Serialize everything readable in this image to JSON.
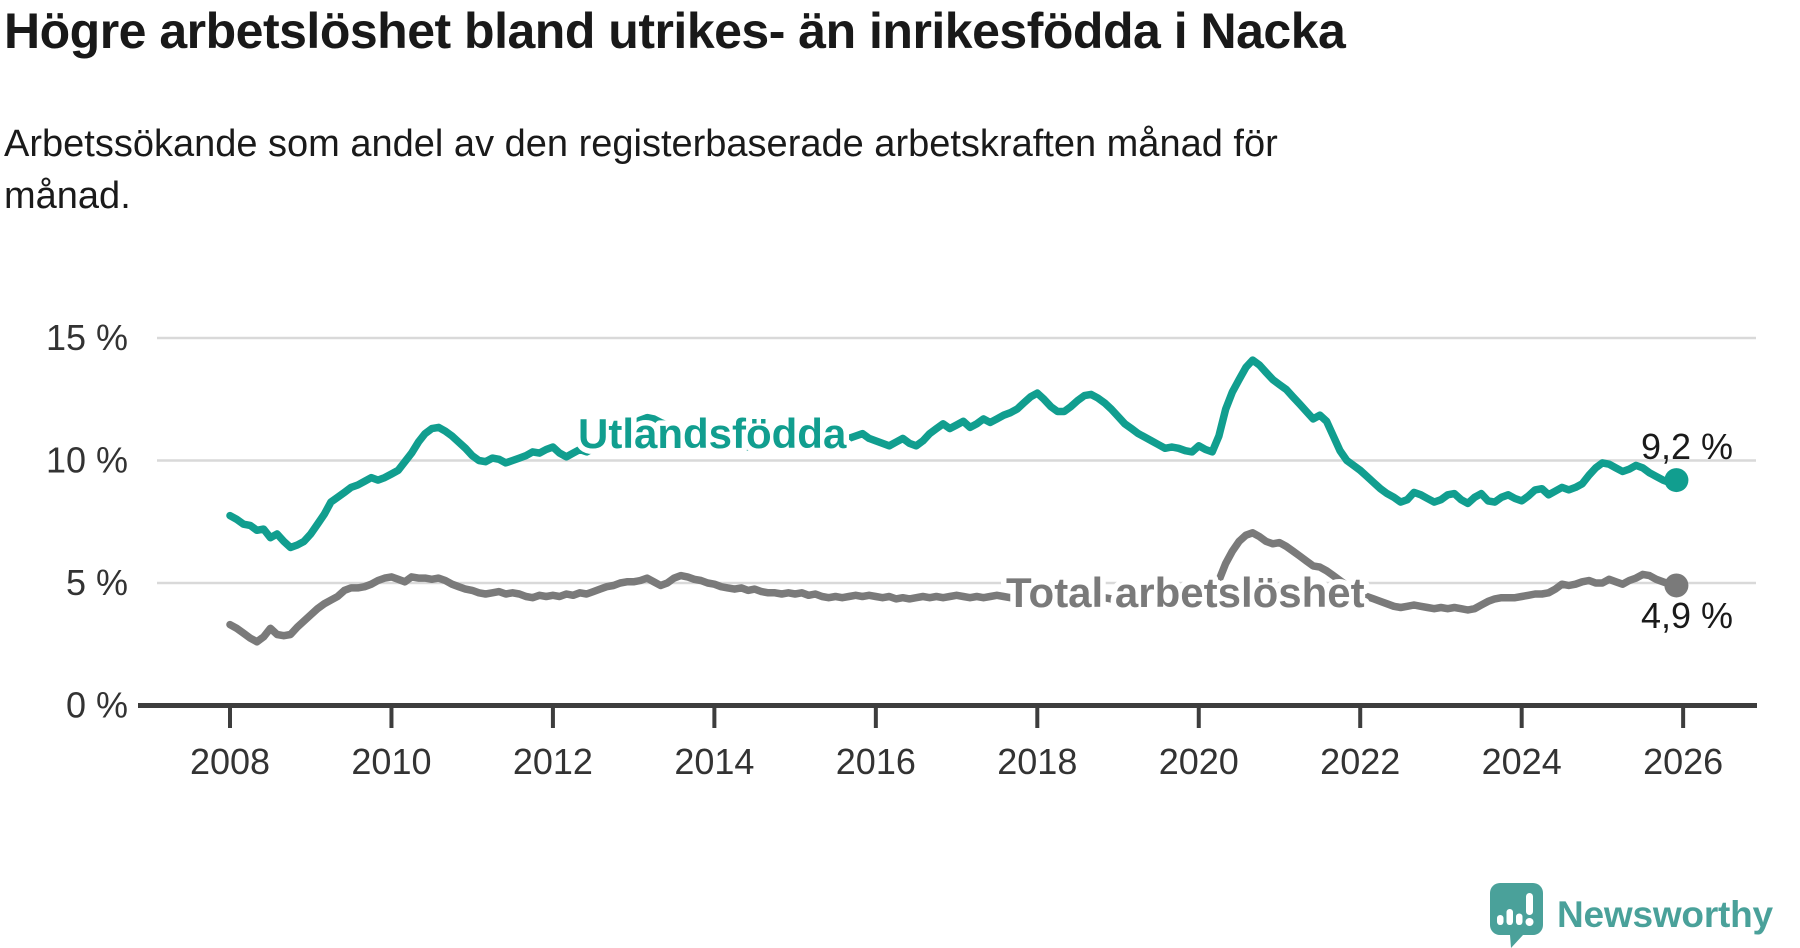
{
  "header": {
    "title": "Högre arbetslöshet bland utrikes- än inrikesfödda i Nacka",
    "subtitle_lines": [
      "Arbetssökande som andel av den registerbaserade arbetskraften månad för",
      "månad."
    ]
  },
  "branding": {
    "name": "Newsworthy",
    "color": "#4aa19a"
  },
  "colors": {
    "teal": "#119e8f",
    "gray": "#7a7a7a",
    "grid": "#d9d9d9",
    "axis": "#3d3d3d",
    "text": "#1a1a1a",
    "tick_text": "#333333"
  },
  "chart_data": {
    "type": "line",
    "title": "Högre arbetslöshet bland utrikes- än inrikesfödda i Nacka",
    "xlabel": "",
    "ylabel": "Arbetssökande som andel av den registerbaserade arbetskraften",
    "x_start": "2008-01",
    "x_end": "2025-12",
    "x_frequency": "monthly",
    "x_tick_years": [
      2008,
      2010,
      2012,
      2014,
      2016,
      2018,
      2020,
      2022,
      2024,
      2026
    ],
    "y_ticks": [
      0,
      5,
      10,
      15
    ],
    "y_tick_suffix": " %",
    "ylim": [
      0,
      15.8
    ],
    "grid": true,
    "legend_position": "inline-on-line",
    "series": [
      {
        "name": "Utlandsfödda",
        "color": "#119e8f",
        "end_value": 9.2,
        "end_label": "9,2 %",
        "label_anchor": {
          "x_year": 2012.3,
          "y_pct": 11.15
        },
        "values": [
          7.75,
          7.6,
          7.4,
          7.35,
          7.15,
          7.2,
          6.85,
          7.0,
          6.7,
          6.45,
          6.55,
          6.7,
          7.0,
          7.4,
          7.8,
          8.3,
          8.5,
          8.7,
          8.9,
          9.0,
          9.15,
          9.3,
          9.2,
          9.3,
          9.45,
          9.6,
          9.95,
          10.3,
          10.75,
          11.1,
          11.3,
          11.35,
          11.2,
          11.0,
          10.75,
          10.5,
          10.2,
          10.0,
          9.95,
          10.1,
          10.05,
          9.9,
          10.0,
          10.1,
          10.2,
          10.35,
          10.3,
          10.45,
          10.55,
          10.3,
          10.15,
          10.3,
          10.45,
          10.35,
          10.5,
          10.65,
          10.8,
          10.95,
          11.1,
          11.3,
          11.5,
          11.65,
          11.75,
          11.7,
          11.55,
          11.45,
          11.3,
          11.2,
          11.1,
          11.0,
          10.9,
          11.0,
          11.05,
          10.9,
          10.8,
          10.7,
          10.65,
          10.55,
          10.65,
          10.55,
          10.6,
          10.7,
          10.65,
          10.75,
          10.7,
          10.8,
          10.75,
          10.7,
          10.8,
          10.75,
          10.7,
          10.8,
          10.9,
          11.0,
          11.1,
          10.9,
          10.8,
          10.7,
          10.6,
          10.75,
          10.9,
          10.7,
          10.6,
          10.8,
          11.1,
          11.3,
          11.5,
          11.3,
          11.45,
          11.6,
          11.35,
          11.5,
          11.7,
          11.55,
          11.7,
          11.85,
          11.95,
          12.1,
          12.35,
          12.6,
          12.75,
          12.5,
          12.2,
          12.0,
          12.0,
          12.2,
          12.45,
          12.65,
          12.7,
          12.55,
          12.35,
          12.1,
          11.8,
          11.5,
          11.3,
          11.1,
          10.95,
          10.8,
          10.65,
          10.5,
          10.55,
          10.5,
          10.4,
          10.35,
          10.6,
          10.45,
          10.35,
          11.0,
          12.1,
          12.8,
          13.3,
          13.8,
          14.1,
          13.9,
          13.6,
          13.3,
          13.1,
          12.9,
          12.6,
          12.3,
          12.0,
          11.7,
          11.85,
          11.6,
          11.0,
          10.4,
          10.0,
          9.8,
          9.6,
          9.35,
          9.1,
          8.85,
          8.65,
          8.5,
          8.3,
          8.4,
          8.7,
          8.6,
          8.45,
          8.3,
          8.4,
          8.6,
          8.65,
          8.4,
          8.25,
          8.5,
          8.65,
          8.35,
          8.3,
          8.5,
          8.6,
          8.45,
          8.35,
          8.55,
          8.8,
          8.85,
          8.6,
          8.75,
          8.9,
          8.8,
          8.9,
          9.05,
          9.4,
          9.7,
          9.9,
          9.85,
          9.7,
          9.55,
          9.65,
          9.8,
          9.7,
          9.5,
          9.35,
          9.2,
          9.1,
          9.2
        ]
      },
      {
        "name": "Total arbetslöshet",
        "color": "#7a7a7a",
        "end_value": 4.9,
        "end_label": "4,9 %",
        "label_anchor": {
          "x_year": 2017.7,
          "y_pct": 4.65
        },
        "values": [
          3.3,
          3.15,
          2.95,
          2.75,
          2.6,
          2.8,
          3.15,
          2.9,
          2.85,
          2.9,
          3.2,
          3.45,
          3.7,
          3.95,
          4.15,
          4.3,
          4.45,
          4.7,
          4.8,
          4.8,
          4.85,
          4.95,
          5.1,
          5.2,
          5.25,
          5.15,
          5.05,
          5.25,
          5.2,
          5.2,
          5.15,
          5.2,
          5.1,
          4.95,
          4.85,
          4.75,
          4.7,
          4.6,
          4.55,
          4.6,
          4.65,
          4.55,
          4.6,
          4.55,
          4.45,
          4.4,
          4.5,
          4.45,
          4.5,
          4.45,
          4.55,
          4.5,
          4.6,
          4.55,
          4.65,
          4.75,
          4.85,
          4.9,
          5.0,
          5.05,
          5.05,
          5.1,
          5.2,
          5.05,
          4.9,
          5.0,
          5.2,
          5.3,
          5.25,
          5.15,
          5.1,
          5.0,
          4.95,
          4.85,
          4.8,
          4.75,
          4.8,
          4.7,
          4.75,
          4.65,
          4.6,
          4.6,
          4.55,
          4.6,
          4.55,
          4.6,
          4.5,
          4.55,
          4.45,
          4.4,
          4.45,
          4.4,
          4.45,
          4.5,
          4.45,
          4.5,
          4.45,
          4.4,
          4.45,
          4.35,
          4.4,
          4.35,
          4.4,
          4.45,
          4.4,
          4.45,
          4.4,
          4.45,
          4.5,
          4.45,
          4.4,
          4.45,
          4.4,
          4.45,
          4.5,
          4.45,
          4.4,
          4.45,
          4.5,
          4.55,
          4.5,
          4.45,
          4.5,
          4.45,
          4.4,
          4.45,
          4.5,
          4.55,
          4.5,
          4.45,
          4.4,
          4.35,
          4.35,
          4.3,
          4.35,
          4.3,
          4.35,
          4.3,
          4.35,
          4.3,
          4.35,
          4.4,
          4.35,
          4.3,
          4.4,
          4.35,
          4.45,
          5.1,
          5.8,
          6.3,
          6.7,
          6.95,
          7.05,
          6.9,
          6.7,
          6.6,
          6.65,
          6.5,
          6.3,
          6.1,
          5.9,
          5.7,
          5.65,
          5.5,
          5.3,
          5.1,
          4.9,
          4.7,
          4.55,
          4.45,
          4.35,
          4.25,
          4.15,
          4.05,
          4.0,
          4.05,
          4.1,
          4.05,
          4.0,
          3.95,
          4.0,
          3.95,
          4.0,
          3.95,
          3.9,
          3.95,
          4.1,
          4.25,
          4.35,
          4.4,
          4.4,
          4.4,
          4.45,
          4.5,
          4.55,
          4.55,
          4.6,
          4.75,
          4.95,
          4.9,
          4.95,
          5.05,
          5.1,
          5.0,
          5.0,
          5.15,
          5.05,
          4.95,
          5.1,
          5.2,
          5.35,
          5.3,
          5.15,
          5.05,
          4.95,
          4.9
        ]
      }
    ]
  }
}
